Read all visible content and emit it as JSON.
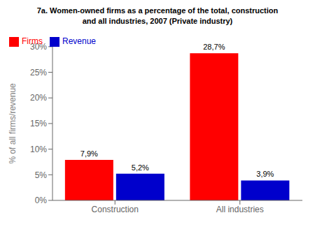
{
  "chart_data": {
    "type": "bar",
    "title": "7a. Women-owned firms as a percentage of the total, construction\nand all industries, 2007 (Private industry)",
    "categories": [
      "Construction",
      "All industries"
    ],
    "series": [
      {
        "name": "Firms",
        "color": "#ff0000",
        "values": [
          7.9,
          28.7
        ],
        "value_labels": [
          "7,9%",
          "28,7%"
        ]
      },
      {
        "name": "Revenue",
        "color": "#0000cc",
        "values": [
          5.2,
          3.9
        ],
        "value_labels": [
          "5,2%",
          "3,9%"
        ]
      }
    ],
    "ylabel": "% of all firms/revenue",
    "ylim": [
      0,
      30
    ],
    "yticks": [
      {
        "value": 0,
        "label": "0%"
      },
      {
        "value": 5,
        "label": "5%"
      },
      {
        "value": 10,
        "label": "10%"
      },
      {
        "value": 15,
        "label": "15%"
      },
      {
        "value": 20,
        "label": "20%"
      },
      {
        "value": 25,
        "label": "25%"
      },
      {
        "value": 30,
        "label": "30%"
      }
    ],
    "grid": false,
    "legend": "upper left",
    "data_labels": true
  }
}
